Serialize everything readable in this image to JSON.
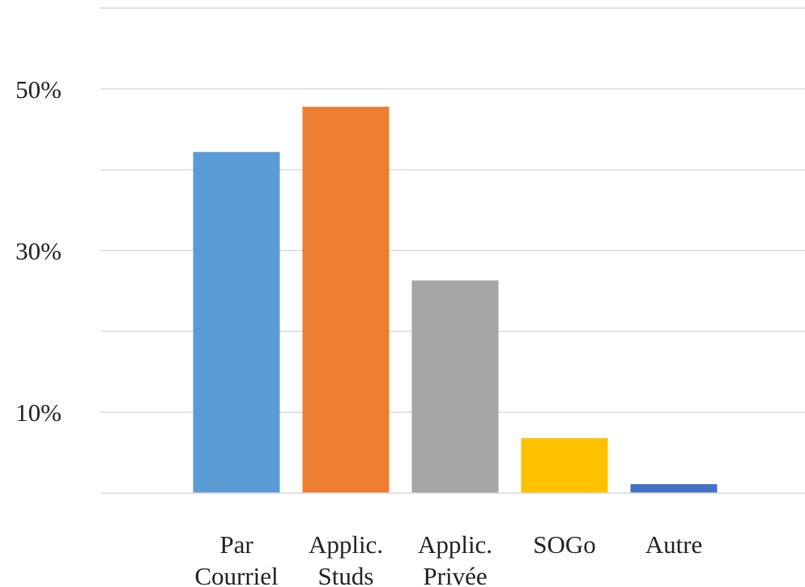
{
  "chart_data": {
    "type": "bar",
    "categories": [
      [
        "Par",
        "Courriel"
      ],
      [
        "Applic.",
        "Studs"
      ],
      [
        "Applic.",
        "Privée"
      ],
      [
        "SOGo"
      ],
      [
        "Autre"
      ]
    ],
    "values": [
      42.2,
      47.8,
      26.3,
      6.8,
      1.1
    ],
    "colors": [
      "#5b9bd5",
      "#ed7d31",
      "#a5a5a5",
      "#ffc000",
      "#4472c4"
    ],
    "ylim": [
      0,
      60
    ],
    "gridlines": [
      0,
      10,
      20,
      30,
      40,
      50,
      60
    ],
    "yticks": [
      {
        "value": 10,
        "label": "10%"
      },
      {
        "value": 30,
        "label": "30%"
      },
      {
        "value": 50,
        "label": "50%"
      }
    ],
    "grid": true,
    "legend": "none",
    "title": "",
    "xlabel": "",
    "ylabel": ""
  }
}
